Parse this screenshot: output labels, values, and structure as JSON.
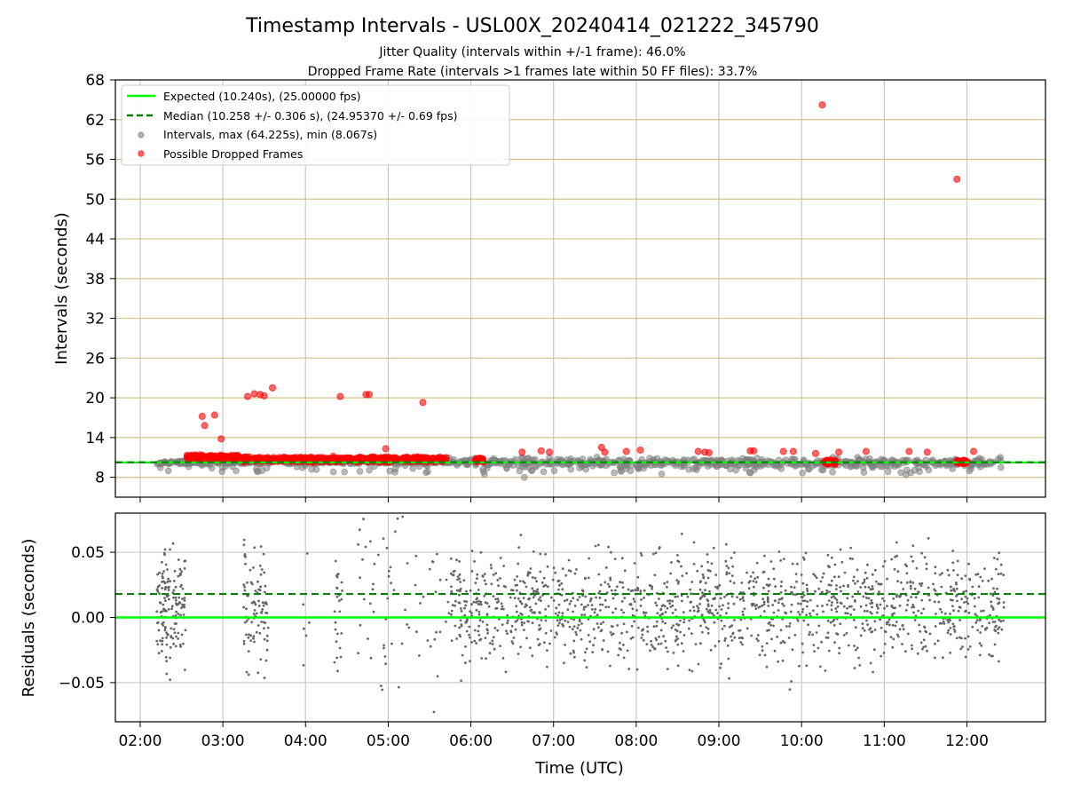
{
  "chart_data": [
    {
      "type": "scatter",
      "title": "Timestamp Intervals - USL00X_20240414_021222_345790",
      "subtitle_lines": [
        "Jitter Quality (intervals within +/-1 frame): 46.0%",
        "Dropped Frame Rate (intervals >1 frames late within 50 FF files): 33.7%"
      ],
      "xlabel": "",
      "ylabel": "Intervals (seconds)",
      "ylim": [
        5,
        68
      ],
      "yticks": [
        8,
        14,
        20,
        26,
        32,
        38,
        44,
        50,
        56,
        62,
        68
      ],
      "xlim_hours": [
        1.7,
        12.95
      ],
      "xticks_hours": [
        2,
        3,
        4,
        5,
        6,
        7,
        8,
        9,
        10,
        11,
        12
      ],
      "grid": true,
      "legend_placement": "top-left",
      "legend": [
        "Expected (10.240s), (25.00000 fps)",
        "Median (10.258 +/- 0.306 s), (24.95370 +/- 0.69 fps)",
        "Intervals, max (64.225s), min (8.067s)",
        "Possible Dropped Frames"
      ],
      "expected_interval": 10.24,
      "median_interval": 10.258,
      "interval_range_hours": [
        2.2,
        12.45
      ],
      "interval_base": 10.24,
      "dropped_frame_points": [
        {
          "t": 2.75,
          "v": 17.2
        },
        {
          "t": 2.78,
          "v": 15.8
        },
        {
          "t": 2.9,
          "v": 17.4
        },
        {
          "t": 2.98,
          "v": 13.8
        },
        {
          "t": 3.3,
          "v": 20.2
        },
        {
          "t": 3.38,
          "v": 20.6
        },
        {
          "t": 3.45,
          "v": 20.5
        },
        {
          "t": 3.5,
          "v": 20.3
        },
        {
          "t": 3.6,
          "v": 21.5
        },
        {
          "t": 4.42,
          "v": 20.2
        },
        {
          "t": 4.73,
          "v": 20.5
        },
        {
          "t": 4.77,
          "v": 20.5
        },
        {
          "t": 4.97,
          "v": 12.3
        },
        {
          "t": 5.42,
          "v": 19.3
        },
        {
          "t": 6.62,
          "v": 11.8
        },
        {
          "t": 6.85,
          "v": 12.0
        },
        {
          "t": 6.95,
          "v": 11.8
        },
        {
          "t": 7.58,
          "v": 12.5
        },
        {
          "t": 7.62,
          "v": 11.8
        },
        {
          "t": 7.88,
          "v": 11.9
        },
        {
          "t": 8.05,
          "v": 12.1
        },
        {
          "t": 8.75,
          "v": 11.9
        },
        {
          "t": 8.83,
          "v": 11.8
        },
        {
          "t": 8.88,
          "v": 11.7
        },
        {
          "t": 9.38,
          "v": 12.0
        },
        {
          "t": 9.42,
          "v": 12.0
        },
        {
          "t": 9.78,
          "v": 11.9
        },
        {
          "t": 9.9,
          "v": 11.9
        },
        {
          "t": 10.17,
          "v": 11.6
        },
        {
          "t": 10.25,
          "v": 64.225
        },
        {
          "t": 10.45,
          "v": 11.8
        },
        {
          "t": 10.78,
          "v": 11.9
        },
        {
          "t": 11.3,
          "v": 11.9
        },
        {
          "t": 11.52,
          "v": 11.8
        },
        {
          "t": 11.88,
          "v": 53.0
        },
        {
          "t": 12.08,
          "v": 11.9
        }
      ],
      "dropped_band_segments": [
        {
          "t0": 2.55,
          "t1": 3.2,
          "v": 11.0
        },
        {
          "t0": 3.2,
          "t1": 5.7,
          "v": 10.7
        },
        {
          "t0": 6.05,
          "t1": 6.15,
          "v": 10.6
        },
        {
          "t0": 10.27,
          "t1": 10.42,
          "v": 10.3
        },
        {
          "t0": 11.88,
          "t1": 12.0,
          "v": 10.4
        }
      ],
      "colors": {
        "expected": "#00ff00",
        "median": "#008000",
        "intervals": "#808080",
        "dropped": "#ff0000",
        "hgrid": "#d6c08c",
        "vgrid": "#c8c8c8"
      }
    },
    {
      "type": "scatter",
      "xlabel": "Time (UTC)",
      "ylabel": "Residuals (seconds)",
      "ylim": [
        -0.08,
        0.08
      ],
      "yticks": [
        -0.05,
        0.0,
        0.05
      ],
      "ytick_labels": [
        "−0.05",
        "0.00",
        "0.05"
      ],
      "xlim_hours": [
        1.7,
        12.95
      ],
      "xticks_hours": [
        2,
        3,
        4,
        5,
        6,
        7,
        8,
        9,
        10,
        11,
        12
      ],
      "xtick_labels": [
        "02:00",
        "03:00",
        "04:00",
        "05:00",
        "06:00",
        "07:00",
        "08:00",
        "09:00",
        "10:00",
        "11:00",
        "12:00"
      ],
      "grid": true,
      "expected_residual": 0.0,
      "median_residual": 0.018,
      "residual_clusters": [
        {
          "t0": 2.2,
          "t1": 2.55,
          "count": 150,
          "spread": 0.03
        },
        {
          "t0": 3.25,
          "t1": 3.55,
          "count": 90,
          "spread": 0.04
        },
        {
          "t0": 3.95,
          "t1": 4.05,
          "count": 6,
          "spread": 0.05
        },
        {
          "t0": 4.35,
          "t1": 4.45,
          "count": 25,
          "spread": 0.04
        },
        {
          "t0": 4.6,
          "t1": 5.75,
          "count": 70,
          "spread": 0.06
        },
        {
          "t0": 5.75,
          "t1": 12.45,
          "count": 1400,
          "spread": 0.03
        }
      ],
      "colors": {
        "expected": "#00ff00",
        "median": "#008000",
        "residuals": "#666666",
        "grid": "#c8c8c8"
      }
    }
  ]
}
